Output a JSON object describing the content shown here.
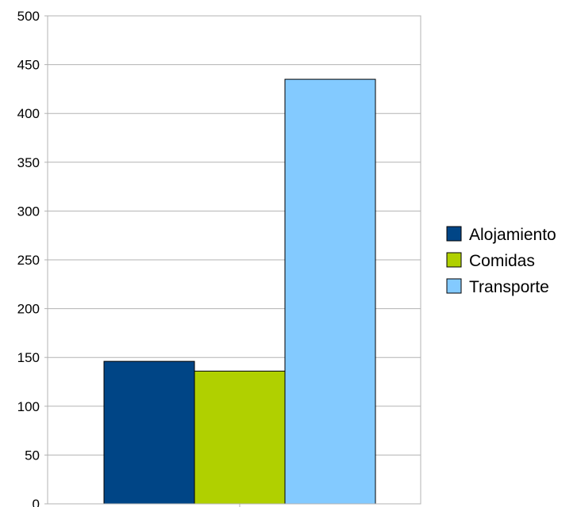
{
  "chart_data": {
    "type": "bar",
    "title": "",
    "xlabel": "",
    "ylabel": "",
    "ylim": [
      0,
      500
    ],
    "yticks": [
      0,
      50,
      100,
      150,
      200,
      250,
      300,
      350,
      400,
      450,
      500
    ],
    "grid": true,
    "legend_position": "right",
    "series": [
      {
        "name": "Alojamiento",
        "values": [
          146
        ],
        "color": "#004586"
      },
      {
        "name": "Comidas",
        "values": [
          136
        ],
        "color": "#b0d000"
      },
      {
        "name": "Transporte",
        "values": [
          435
        ],
        "color": "#83caff"
      }
    ]
  }
}
